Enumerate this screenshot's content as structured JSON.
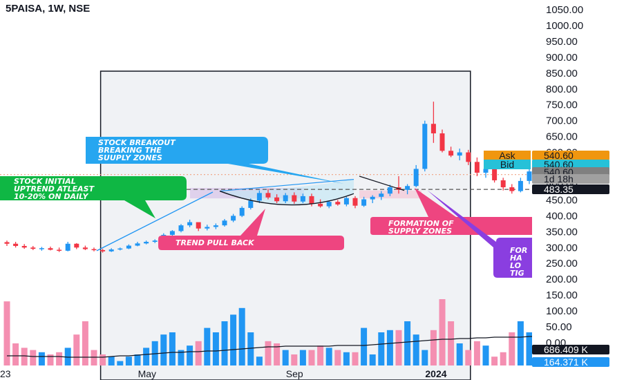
{
  "header": {
    "title": "5PAISA, 1W, NSE"
  },
  "chart_data": {
    "type": "candlestick",
    "ylim": [
      0,
      1075
    ],
    "price_axis": [
      1050,
      1000,
      950,
      900,
      850,
      800,
      750,
      700,
      650,
      600,
      550,
      500,
      450,
      400,
      350,
      300,
      250,
      200,
      150,
      100,
      50,
      0
    ],
    "price_axis_labels": [
      "1050.00",
      "1000.00",
      "950.00",
      "900.00",
      "850.00",
      "800.00",
      "750.00",
      "700.00",
      "650.00",
      "600.00",
      "550.00",
      "500.00",
      "450.00",
      "400.00",
      "350.00",
      "300.00",
      "250.00",
      "200.00",
      "150.00",
      "100.00",
      "50.00",
      "0.00"
    ],
    "x_labels": [
      {
        "label": "23",
        "i": 0
      },
      {
        "label": "May",
        "i": 16
      },
      {
        "label": "Sep",
        "i": 33
      },
      {
        "label": "2024",
        "i": 49
      }
    ],
    "highlight_range": {
      "start_i": 11,
      "end_i": 53
    },
    "reference_levels": [
      {
        "price": 530,
        "style": "dotted",
        "color": "#f0a080"
      },
      {
        "price": 483.35,
        "style": "dashed",
        "color": "#555555"
      }
    ],
    "candles": [
      [
        317,
        322,
        305,
        312
      ],
      [
        312,
        318,
        300,
        305
      ],
      [
        305,
        311,
        296,
        300
      ],
      [
        300,
        305,
        292,
        296
      ],
      [
        296,
        302,
        290,
        298
      ],
      [
        298,
        303,
        291,
        293
      ],
      [
        293,
        300,
        286,
        290
      ],
      [
        290,
        318,
        288,
        312
      ],
      [
        312,
        314,
        295,
        300
      ],
      [
        300,
        306,
        292,
        295
      ],
      [
        295,
        300,
        288,
        292
      ],
      [
        292,
        296,
        284,
        288
      ],
      [
        288,
        298,
        286,
        294
      ],
      [
        294,
        300,
        291,
        297
      ],
      [
        297,
        310,
        295,
        306
      ],
      [
        306,
        318,
        304,
        313
      ],
      [
        313,
        322,
        310,
        318
      ],
      [
        318,
        326,
        314,
        322
      ],
      [
        322,
        345,
        318,
        340
      ],
      [
        340,
        355,
        335,
        352
      ],
      [
        352,
        374,
        348,
        370
      ],
      [
        370,
        388,
        364,
        380
      ],
      [
        380,
        376,
        352,
        360
      ],
      [
        360,
        372,
        354,
        365
      ],
      [
        365,
        376,
        358,
        370
      ],
      [
        370,
        390,
        366,
        385
      ],
      [
        385,
        406,
        380,
        400
      ],
      [
        400,
        430,
        396,
        425
      ],
      [
        425,
        455,
        420,
        448
      ],
      [
        448,
        480,
        440,
        472
      ],
      [
        472,
        485,
        452,
        458
      ],
      [
        458,
        468,
        440,
        446
      ],
      [
        446,
        472,
        440,
        465
      ],
      [
        465,
        474,
        438,
        445
      ],
      [
        445,
        470,
        440,
        462
      ],
      [
        462,
        470,
        430,
        438
      ],
      [
        438,
        452,
        426,
        430
      ],
      [
        430,
        448,
        424,
        444
      ],
      [
        444,
        450,
        432,
        436
      ],
      [
        436,
        460,
        430,
        456
      ],
      [
        456,
        462,
        424,
        432
      ],
      [
        432,
        460,
        428,
        452
      ],
      [
        452,
        465,
        440,
        460
      ],
      [
        460,
        478,
        450,
        470
      ],
      [
        470,
        498,
        462,
        490
      ],
      [
        490,
        525,
        470,
        482
      ],
      [
        482,
        500,
        468,
        494
      ],
      [
        494,
        560,
        490,
        548
      ],
      [
        548,
        700,
        540,
        690
      ],
      [
        690,
        760,
        630,
        660
      ],
      [
        660,
        672,
        600,
        605
      ],
      [
        605,
        618,
        585,
        590
      ],
      [
        590,
        612,
        575,
        600
      ],
      [
        600,
        608,
        560,
        570
      ],
      [
        570,
        584,
        525,
        536
      ],
      [
        536,
        560,
        520,
        548
      ],
      [
        548,
        552,
        505,
        512
      ],
      [
        512,
        520,
        480,
        490
      ],
      [
        490,
        500,
        470,
        478
      ],
      [
        478,
        520,
        474,
        510
      ],
      [
        510,
        548,
        500,
        540
      ],
      [
        540,
        550,
        515,
        530
      ]
    ],
    "volume": {
      "series": [
        {
          "name": "686.409 K",
          "values": [
            58,
            20,
            16,
            14,
            12,
            10,
            12,
            16,
            28,
            40,
            14,
            10,
            8,
            4,
            8,
            10,
            16,
            22,
            28,
            30,
            14,
            18,
            22,
            34,
            30,
            40,
            46,
            52,
            30,
            8,
            22,
            20,
            14,
            10,
            14,
            14,
            18,
            16,
            14,
            12,
            12,
            34,
            10,
            30,
            32,
            32,
            40,
            28,
            14,
            32,
            60,
            40,
            20,
            14,
            22,
            18,
            8,
            12,
            30,
            40,
            30,
            20
          ]
        },
        {
          "name": "164.371 K",
          "values": []
        }
      ]
    },
    "ma_line": [
      14,
      14,
      14,
      13,
      13,
      13,
      13,
      12,
      12,
      12,
      12,
      12,
      13,
      14,
      14,
      15,
      16,
      17,
      18,
      19,
      19,
      20,
      20,
      21,
      21,
      22,
      23,
      24,
      25,
      26,
      27,
      27,
      28,
      28,
      28,
      28,
      28,
      28,
      29,
      29,
      29,
      29,
      30,
      31,
      32,
      33,
      34,
      35,
      36,
      37,
      38,
      38,
      39,
      39,
      40,
      40,
      41,
      41,
      41,
      41,
      42,
      42
    ],
    "price_tags": [
      {
        "label": "Ask",
        "value": "540.60",
        "color": "#f0960f",
        "text": "#131722"
      },
      {
        "label": "Bid",
        "value": "540.60",
        "color": "#26c1d8",
        "text": "#131722"
      },
      {
        "label": "",
        "value": "540.60",
        "color": "#808080",
        "text": "#131722"
      },
      {
        "label": "",
        "value": "1d 18h",
        "color": "#a0a0a0",
        "text": "#131722"
      },
      {
        "label": "",
        "value": "483.35",
        "color": "#131722",
        "text": "#ffffff"
      },
      {
        "label": "",
        "value": "686.409 K",
        "color": "#131722",
        "text": "#ffffff"
      },
      {
        "label": "",
        "value": "164.371 K",
        "color": "#2196f3",
        "text": "#ffffff"
      }
    ],
    "annotations": [
      {
        "text": "STOCK INITIAL UPTREND ATLEAST 10-20% ON DAILY",
        "color": "#0fb744"
      },
      {
        "text": "STOCK BREAKOUT BREAKING THE SUUPLY ZONES",
        "color": "#26a6f0"
      },
      {
        "text": "TREND PULL BACK",
        "color": "#ee4580"
      },
      {
        "text": "FORMATION OF SUPPLY ZONES",
        "color": "#ee4580"
      },
      {
        "text": "FOR HA LO TIG OV",
        "color": "#8a3ee0"
      }
    ],
    "colors": {
      "up": "#2196f3",
      "down": "#f23645",
      "vol_up": "#2196f3",
      "vol_down": "#f48fb1"
    }
  }
}
